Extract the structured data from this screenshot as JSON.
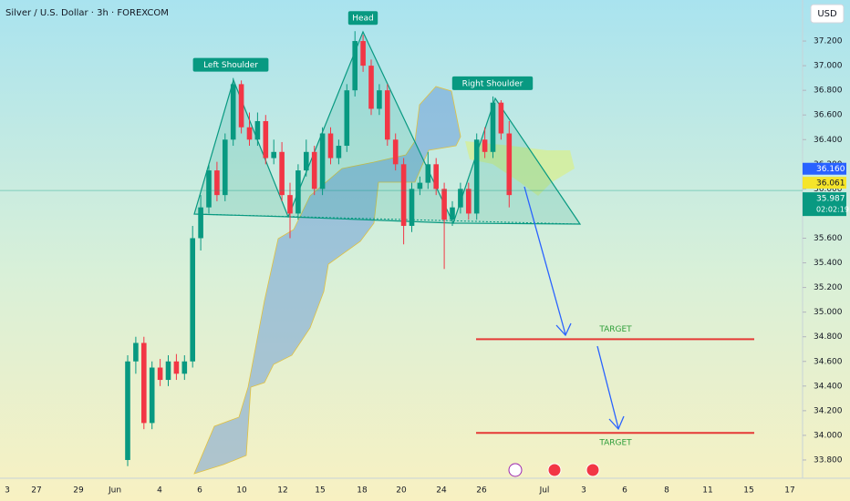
{
  "chart_data": {
    "type": "candlestick",
    "title": "Silver / U.S. Dollar · 3h · FOREXCOM",
    "currency": "USD",
    "ylim": [
      33.652,
      37.533
    ],
    "yticks": [
      {
        "value": 37.2,
        "label": "37.200"
      },
      {
        "value": 37.0,
        "label": "37.000"
      },
      {
        "value": 36.8,
        "label": "36.800"
      },
      {
        "value": 36.6,
        "label": "36.600"
      },
      {
        "value": 36.4,
        "label": "36.400"
      },
      {
        "value": 36.2,
        "label": "36.200"
      },
      {
        "value": 36.0,
        "label": "36.000"
      },
      {
        "value": 35.8,
        "label": "35.800"
      },
      {
        "value": 35.6,
        "label": "35.600"
      },
      {
        "value": 35.4,
        "label": "35.400"
      },
      {
        "value": 35.2,
        "label": "35.200"
      },
      {
        "value": 35.0,
        "label": "35.000"
      },
      {
        "value": 34.8,
        "label": "34.800"
      },
      {
        "value": 34.6,
        "label": "34.600"
      },
      {
        "value": 34.4,
        "label": "34.400"
      },
      {
        "value": 34.2,
        "label": "34.200"
      },
      {
        "value": 34.0,
        "label": "34.000"
      },
      {
        "value": 33.8,
        "label": "33.800"
      }
    ],
    "x_tick_labels": [
      "3",
      "27",
      "29",
      "Jun",
      "4",
      "6",
      "10",
      "12",
      "15",
      "18",
      "20",
      "24",
      "26",
      "Jul",
      "3",
      "6",
      "8",
      "11",
      "15",
      "17"
    ],
    "up_color": "#089981",
    "down_color": "#f23645",
    "open": [
      33.8,
      34.6,
      34.75,
      34.1,
      34.55,
      34.45,
      34.6,
      34.5,
      34.6,
      35.6,
      35.85,
      36.15,
      35.95,
      36.4,
      36.85,
      36.5,
      36.4,
      36.55,
      36.25,
      36.3,
      35.95,
      35.8,
      36.15,
      36.3,
      36.0,
      36.45,
      36.25,
      36.35,
      36.8,
      37.2,
      37.0,
      36.65,
      36.8,
      36.4,
      36.2,
      35.7,
      36.0,
      36.05,
      36.2,
      36.0,
      35.75,
      35.85,
      36.0,
      35.8,
      36.4,
      36.3,
      36.7,
      36.45
    ],
    "high": [
      34.65,
      34.8,
      34.8,
      34.6,
      34.62,
      34.65,
      34.66,
      34.65,
      35.7,
      35.95,
      36.2,
      36.22,
      36.45,
      36.9,
      36.88,
      36.62,
      36.62,
      36.6,
      36.4,
      36.38,
      36.05,
      36.2,
      36.4,
      36.35,
      36.5,
      36.5,
      36.4,
      36.85,
      37.28,
      37.25,
      37.05,
      36.85,
      36.85,
      36.45,
      36.25,
      36.05,
      36.1,
      36.3,
      36.25,
      36.05,
      35.9,
      36.05,
      36.05,
      36.45,
      36.5,
      36.75,
      36.72,
      36.55
    ],
    "low": [
      33.75,
      34.5,
      34.05,
      34.05,
      34.4,
      34.4,
      34.45,
      34.45,
      34.55,
      35.5,
      35.8,
      35.9,
      35.9,
      36.35,
      36.45,
      36.35,
      36.35,
      36.2,
      36.2,
      35.9,
      35.6,
      35.75,
      36.1,
      35.95,
      35.95,
      36.2,
      36.2,
      36.3,
      36.75,
      36.95,
      36.6,
      36.6,
      36.35,
      36.15,
      35.55,
      35.65,
      35.95,
      36.0,
      35.95,
      35.35,
      35.7,
      35.8,
      35.75,
      35.75,
      36.25,
      36.25,
      36.4,
      35.85
    ],
    "close": [
      34.6,
      34.75,
      34.1,
      34.55,
      34.45,
      34.6,
      34.5,
      34.6,
      35.6,
      35.85,
      36.15,
      35.95,
      36.4,
      36.85,
      36.5,
      36.4,
      36.55,
      36.25,
      36.3,
      35.95,
      35.8,
      36.15,
      36.3,
      36.0,
      36.45,
      36.25,
      36.35,
      36.8,
      37.2,
      37.0,
      36.65,
      36.8,
      36.4,
      36.2,
      35.7,
      36.0,
      36.05,
      36.2,
      36.0,
      35.75,
      35.85,
      36.0,
      35.8,
      36.4,
      36.3,
      36.7,
      36.45,
      35.95
    ],
    "annotations": [
      {
        "text": "Left Shoulder",
        "value": 36.9
      },
      {
        "text": "Head",
        "value": 37.28
      },
      {
        "text": "Right Shoulder",
        "value": 36.75
      }
    ],
    "targets": [
      {
        "label": "TARGET",
        "value": 34.78
      },
      {
        "label": "TARGET",
        "value": 34.02
      }
    ],
    "price_tags": [
      {
        "label": "36.160",
        "value": 36.16,
        "color": "#2962ff"
      },
      {
        "label": "36.061",
        "value": 36.061,
        "color": "#f5e52a"
      },
      {
        "label": "35.987",
        "value": 35.987,
        "color": "#089981"
      }
    ],
    "countdown": "02:02:19"
  }
}
